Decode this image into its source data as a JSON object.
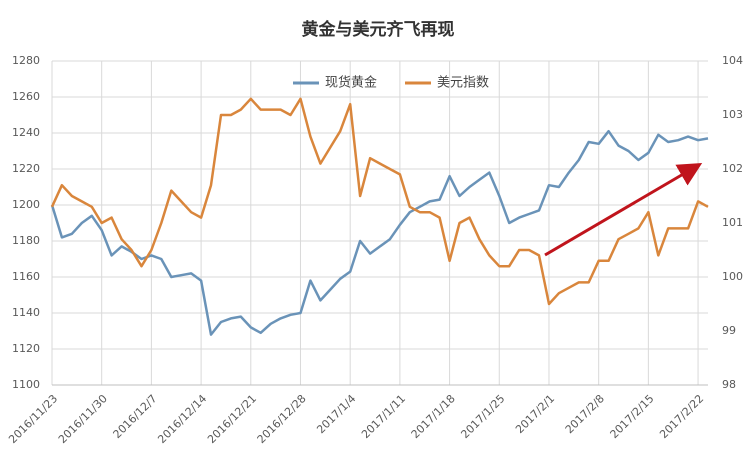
{
  "chart_data": {
    "type": "line",
    "title": "黄金与美元齐飞再现",
    "categories": [
      "2016/11/23",
      null,
      null,
      null,
      null,
      "2016/11/30",
      null,
      null,
      null,
      null,
      "2016/12/7",
      null,
      null,
      null,
      null,
      "2016/12/14",
      null,
      null,
      null,
      null,
      "2016/12/21",
      null,
      null,
      null,
      null,
      "2016/12/28",
      null,
      null,
      null,
      null,
      "2017/1/4",
      null,
      null,
      null,
      null,
      "2017/1/11",
      null,
      null,
      null,
      null,
      "2017/1/18",
      null,
      null,
      null,
      null,
      "2017/1/25",
      null,
      null,
      null,
      null,
      "2017/2/1",
      null,
      null,
      null,
      null,
      "2017/2/8",
      null,
      null,
      null,
      null,
      "2017/2/15",
      null,
      null,
      null,
      null,
      "2017/2/22",
      null
    ],
    "series": [
      {
        "name": "现货黄金",
        "color": "#6a93b8",
        "values": [
          1200,
          1182,
          1184,
          1190,
          1194,
          1186,
          1172,
          1177,
          1174,
          1170,
          1172,
          1170,
          1160,
          1161,
          1162,
          1158,
          1128,
          1135,
          1137,
          1138,
          1132,
          1129,
          1134,
          1137,
          1139,
          1140,
          1158,
          1147,
          1153,
          1159,
          1163,
          1180,
          1173,
          1177,
          1181,
          1189,
          1196,
          1199,
          1202,
          1203,
          1216,
          1205,
          1210,
          1214,
          1218,
          1205,
          1190,
          1193,
          1195,
          1197,
          1211,
          1210,
          1218,
          1225,
          1235,
          1234,
          1241,
          1233,
          1230,
          1225,
          1229,
          1239,
          1235,
          1236,
          1238,
          1236,
          1237
        ]
      },
      {
        "name": "美元指数",
        "color": "#d9863c",
        "axis": "y2",
        "values": [
          101.3,
          101.7,
          101.5,
          101.4,
          101.3,
          101.0,
          101.1,
          100.7,
          100.5,
          100.2,
          100.5,
          101.0,
          101.6,
          101.4,
          101.2,
          101.1,
          101.7,
          103.0,
          103.0,
          103.1,
          103.3,
          103.1,
          103.1,
          103.1,
          103.0,
          103.3,
          102.6,
          102.1,
          102.4,
          102.7,
          103.2,
          101.5,
          102.2,
          102.1,
          102.0,
          101.9,
          101.3,
          101.2,
          101.2,
          101.1,
          100.3,
          101.0,
          101.1,
          100.7,
          100.4,
          100.2,
          100.2,
          100.5,
          100.5,
          100.4,
          99.5,
          99.7,
          99.8,
          99.9,
          99.9,
          100.3,
          100.3,
          100.7,
          100.8,
          100.9,
          101.2,
          100.4,
          100.9,
          100.9,
          100.9,
          101.4,
          101.3
        ]
      }
    ],
    "ylim": [
      1100,
      1280
    ],
    "yticks": [
      1100,
      1120,
      1140,
      1160,
      1180,
      1200,
      1220,
      1240,
      1260,
      1280
    ],
    "y2lim": [
      98,
      104
    ],
    "y2ticks": [
      98,
      99,
      100,
      101,
      102,
      103,
      104
    ],
    "grid": true,
    "legend": "top"
  }
}
